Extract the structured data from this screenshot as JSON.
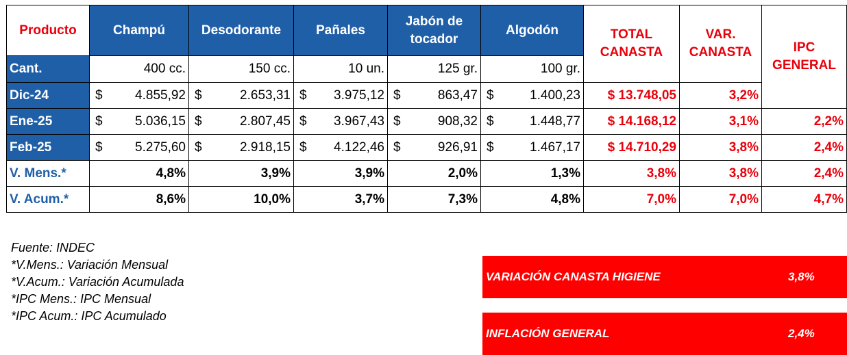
{
  "headers": {
    "producto": "Producto",
    "products": [
      "Champú",
      "Desodorante",
      "Pañales",
      "Jabón de tocador",
      "Algodón"
    ],
    "total_canasta": "TOTAL CANASTA",
    "var_canasta": "VAR. CANASTA",
    "ipc_general": "IPC GENERAL"
  },
  "cant": {
    "label": "Cant.",
    "values": [
      "400 cc.",
      "150 cc.",
      "10 un.",
      "125 gr.",
      "100 gr."
    ]
  },
  "currency_symbol": "$",
  "months": [
    {
      "label": "Dic-24",
      "prices": [
        "4.855,92",
        "2.653,31",
        "3.975,12",
        "863,47",
        "1.400,23"
      ],
      "total": "$ 13.748,05",
      "var": "3,2%",
      "ipc": ""
    },
    {
      "label": "Ene-25",
      "prices": [
        "5.036,15",
        "2.807,45",
        "3.967,43",
        "908,32",
        "1.448,77"
      ],
      "total": "$ 14.168,12",
      "var": "3,1%",
      "ipc": "2,2%"
    },
    {
      "label": "Feb-25",
      "prices": [
        "5.275,60",
        "2.918,15",
        "4.122,46",
        "926,91",
        "1.467,17"
      ],
      "total": "$ 14.710,29",
      "var": "3,8%",
      "ipc": "2,4%"
    }
  ],
  "variations": [
    {
      "label": "V. Mens.*",
      "values": [
        "4,8%",
        "3,9%",
        "3,9%",
        "2,0%",
        "1,3%"
      ],
      "total": "3,8%",
      "var": "3,8%",
      "ipc": "2,4%"
    },
    {
      "label": "V. Acum.*",
      "values": [
        "8,6%",
        "10,0%",
        "3,7%",
        "7,3%",
        "4,8%"
      ],
      "total": "7,0%",
      "var": "7,0%",
      "ipc": "4,7%"
    }
  ],
  "notes": [
    "Fuente: INDEC",
    "*V.Mens.: Variación Mensual",
    "*V.Acum.: Variación Acumulada",
    "*IPC Mens.: IPC Mensual",
    "*IPC Acum.: IPC Acumulado"
  ],
  "summary": [
    {
      "label": "VARIACIÓN CANASTA HIGIENE",
      "value": "3,8%"
    },
    {
      "label": "INFLACIÓN GENERAL",
      "value": "2,4%"
    }
  ],
  "colors": {
    "header_blue": "#1f5fa8",
    "accent_red": "#e8000b",
    "box_red": "#ff0000"
  }
}
